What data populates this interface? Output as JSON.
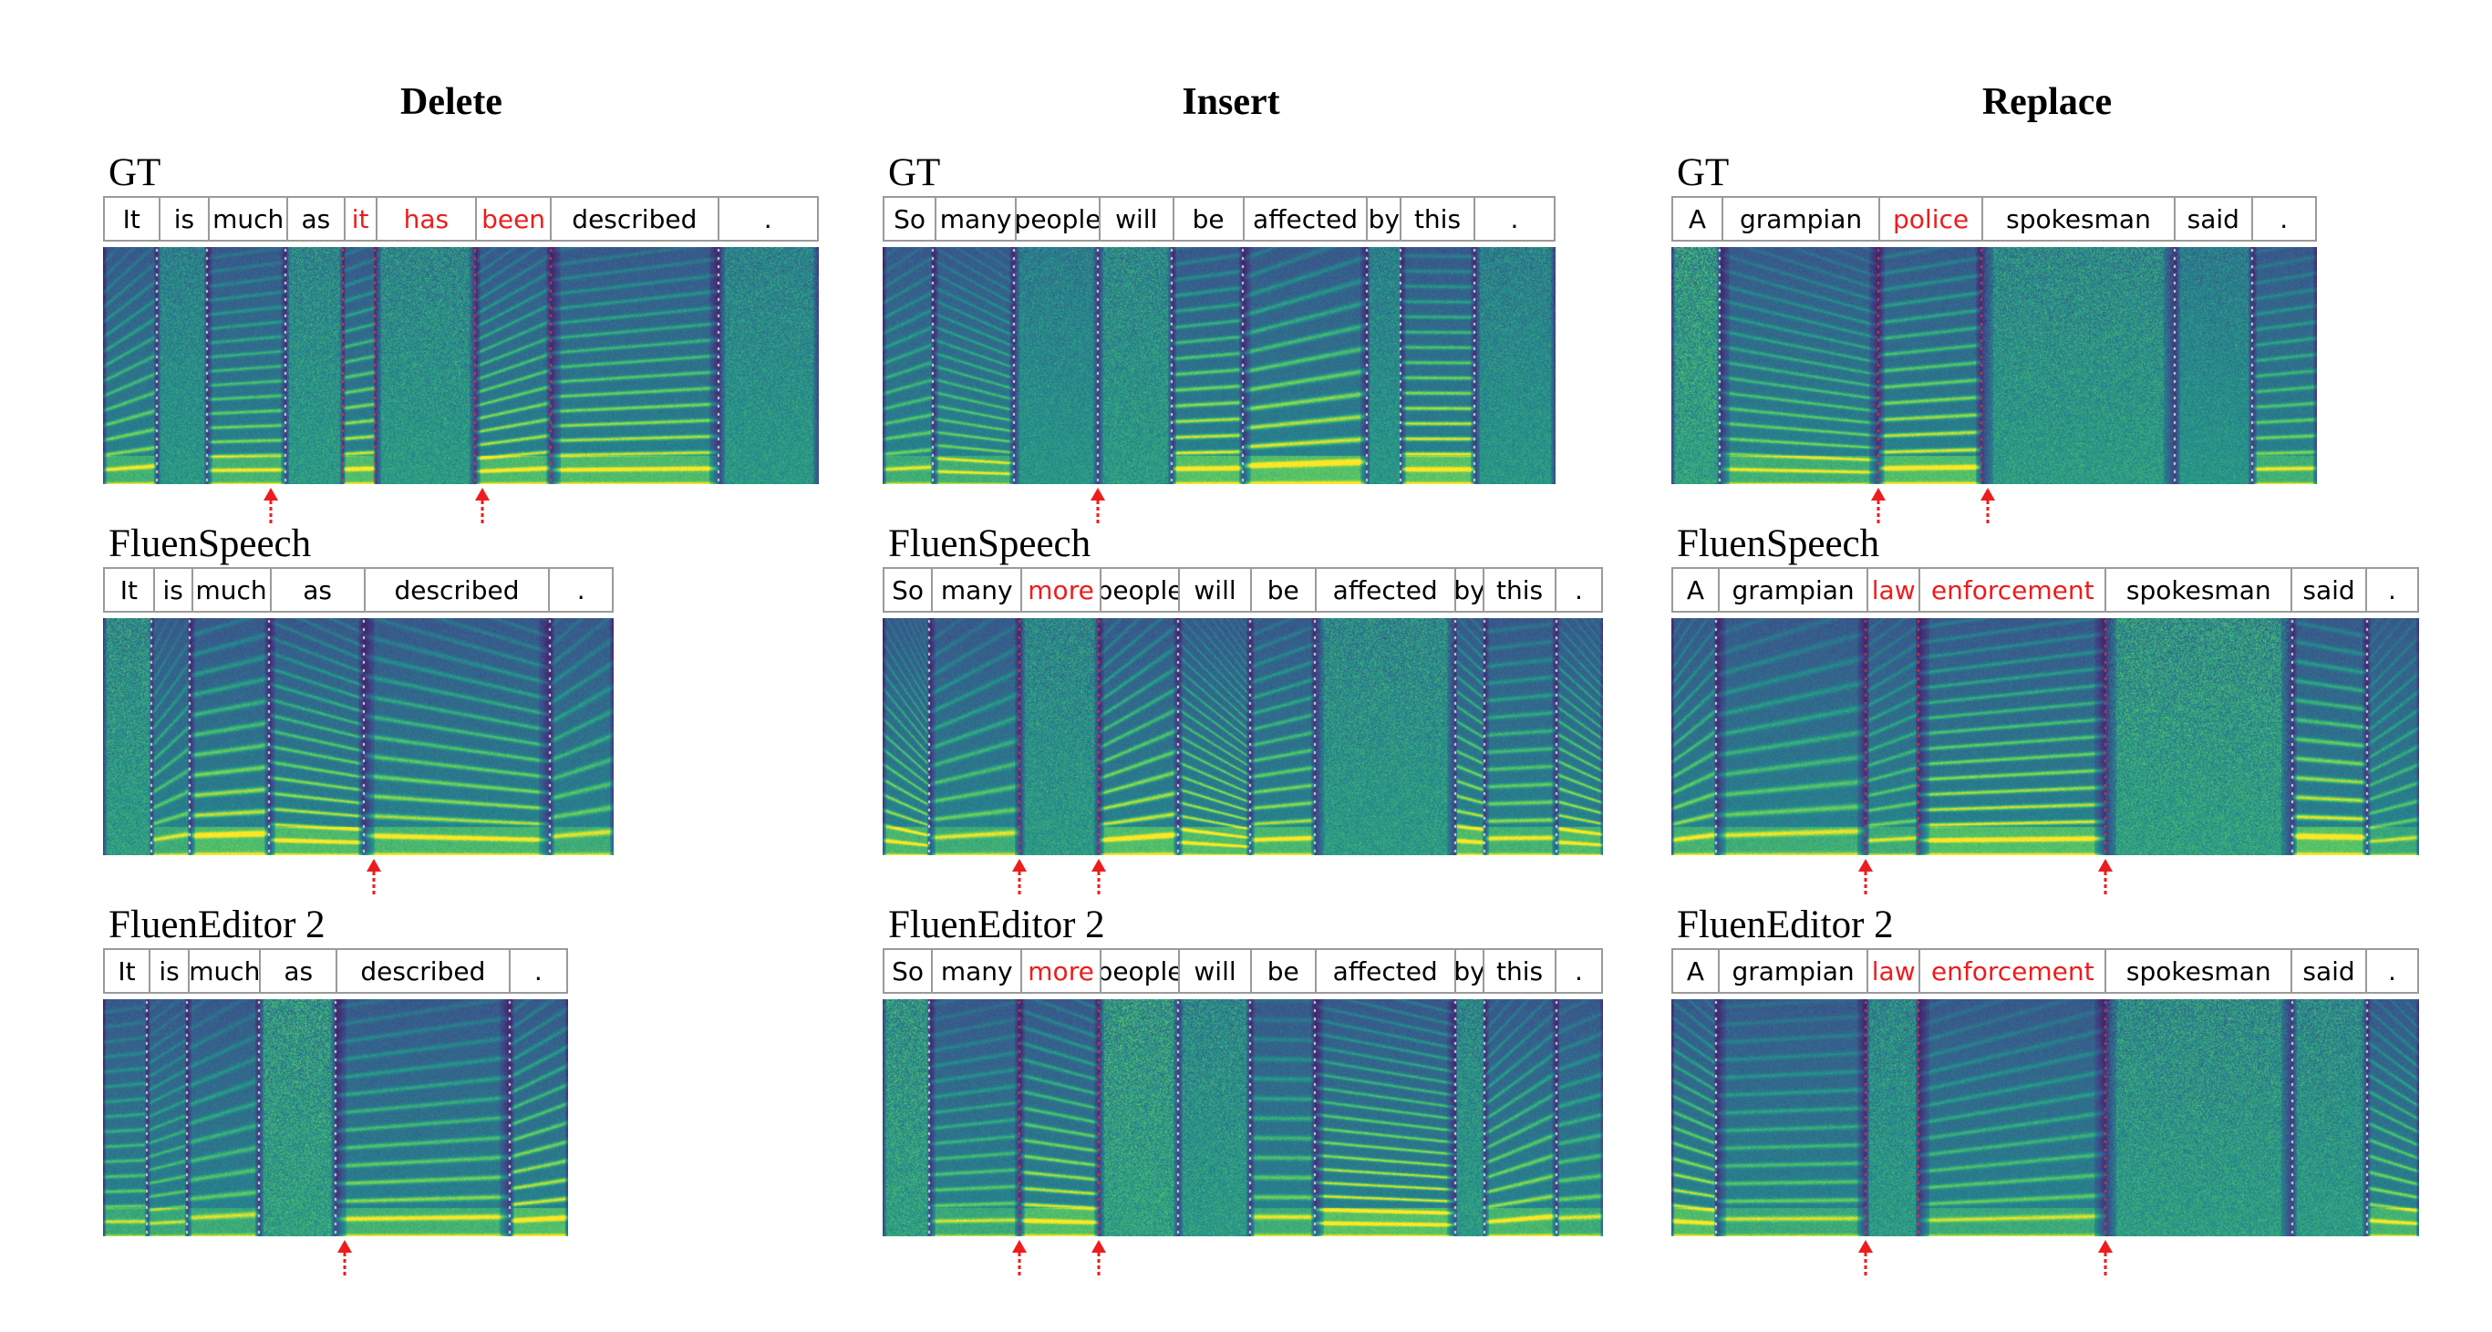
{
  "columns": [
    {
      "title": "Delete",
      "panels": [
        {
          "label": "GT",
          "words": [
            {
              "text": "It",
              "w": 0.075
            },
            {
              "text": "is",
              "w": 0.07
            },
            {
              "text": "much",
              "w": 0.11
            },
            {
              "text": "as",
              "w": 0.08
            },
            {
              "text": "it",
              "w": 0.045,
              "hl": true
            },
            {
              "text": "has",
              "w": 0.14,
              "hl": true
            },
            {
              "text": "been",
              "w": 0.105,
              "hl": true
            },
            {
              "text": "described",
              "w": 0.235
            },
            {
              "text": ".",
              "w": 0.14
            }
          ],
          "markers": [
            0.235,
            0.53
          ]
        },
        {
          "label": "FluenSpeech",
          "words": [
            {
              "text": "It",
              "w": 0.095
            },
            {
              "text": "is",
              "w": 0.075
            },
            {
              "text": "much",
              "w": 0.155
            },
            {
              "text": "as",
              "w": 0.185
            },
            {
              "text": "described",
              "w": 0.365
            },
            {
              "text": ".",
              "w": 0.125
            }
          ],
          "markers": [
            0.53
          ]
        },
        {
          "label": "FluenEditor 2",
          "words": [
            {
              "text": "It",
              "w": 0.095
            },
            {
              "text": "is",
              "w": 0.085
            },
            {
              "text": "much",
              "w": 0.155
            },
            {
              "text": "as",
              "w": 0.165
            },
            {
              "text": "described",
              "w": 0.375
            },
            {
              "text": ".",
              "w": 0.125
            }
          ],
          "markers": [
            0.52
          ]
        }
      ]
    },
    {
      "title": "Insert",
      "panels": [
        {
          "label": "GT",
          "words": [
            {
              "text": "So",
              "w": 0.075
            },
            {
              "text": "many",
              "w": 0.12
            },
            {
              "text": "people",
              "w": 0.125
            },
            {
              "text": "will",
              "w": 0.11
            },
            {
              "text": "be",
              "w": 0.105
            },
            {
              "text": "affected",
              "w": 0.185
            },
            {
              "text": "by",
              "w": 0.05
            },
            {
              "text": "this",
              "w": 0.11
            },
            {
              "text": ".",
              "w": 0.12
            }
          ],
          "markers": [
            0.32
          ]
        },
        {
          "label": "FluenSpeech",
          "words": [
            {
              "text": "So",
              "w": 0.065
            },
            {
              "text": "many",
              "w": 0.125
            },
            {
              "text": "more",
              "w": 0.11,
              "hl": true
            },
            {
              "text": "people",
              "w": 0.11
            },
            {
              "text": "will",
              "w": 0.1
            },
            {
              "text": "be",
              "w": 0.09
            },
            {
              "text": "affected",
              "w": 0.195
            },
            {
              "text": "by",
              "w": 0.04
            },
            {
              "text": "this",
              "w": 0.1
            },
            {
              "text": ".",
              "w": 0.065
            }
          ],
          "markers": [
            0.19,
            0.3
          ]
        },
        {
          "label": "FluenEditor 2",
          "words": [
            {
              "text": "So",
              "w": 0.065
            },
            {
              "text": "many",
              "w": 0.125
            },
            {
              "text": "more",
              "w": 0.11,
              "hl": true
            },
            {
              "text": "people",
              "w": 0.11
            },
            {
              "text": "will",
              "w": 0.1
            },
            {
              "text": "be",
              "w": 0.09
            },
            {
              "text": "affected",
              "w": 0.195
            },
            {
              "text": "by",
              "w": 0.04
            },
            {
              "text": "this",
              "w": 0.1
            },
            {
              "text": ".",
              "w": 0.065
            }
          ],
          "markers": [
            0.19,
            0.3
          ]
        }
      ]
    },
    {
      "title": "Replace",
      "panels": [
        {
          "label": "GT",
          "words": [
            {
              "text": "A",
              "w": 0.075
            },
            {
              "text": "grampian",
              "w": 0.245
            },
            {
              "text": "police",
              "w": 0.16,
              "hl": true
            },
            {
              "text": "spokesman",
              "w": 0.3
            },
            {
              "text": "said",
              "w": 0.12
            },
            {
              "text": ".",
              "w": 0.1
            }
          ],
          "markers": [
            0.32,
            0.49
          ]
        },
        {
          "label": "FluenSpeech",
          "words": [
            {
              "text": "A",
              "w": 0.06
            },
            {
              "text": "grampian",
              "w": 0.2
            },
            {
              "text": "law",
              "w": 0.07,
              "hl": true
            },
            {
              "text": "enforcement",
              "w": 0.25,
              "hl": true
            },
            {
              "text": "spokesman",
              "w": 0.25
            },
            {
              "text": "said",
              "w": 0.1
            },
            {
              "text": ".",
              "w": 0.07
            }
          ],
          "markers": [
            0.26,
            0.58
          ]
        },
        {
          "label": "FluenEditor 2",
          "words": [
            {
              "text": "A",
              "w": 0.06
            },
            {
              "text": "grampian",
              "w": 0.2
            },
            {
              "text": "law",
              "w": 0.07,
              "hl": true
            },
            {
              "text": "enforcement",
              "w": 0.25,
              "hl": true
            },
            {
              "text": "spokesman",
              "w": 0.25
            },
            {
              "text": "said",
              "w": 0.1
            },
            {
              "text": ".",
              "w": 0.07
            }
          ],
          "markers": [
            0.26,
            0.58
          ]
        }
      ]
    }
  ],
  "colors": {
    "highlight": "#ee1c1c",
    "marker": "#ee1c1c",
    "border": "#9a9a9a",
    "boundary_dots": "#d9d9d9",
    "edit_boundary_dots": "#e53030"
  }
}
